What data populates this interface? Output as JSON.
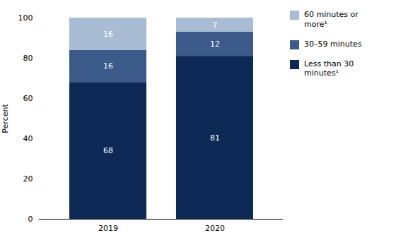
{
  "chart_data": {
    "type": "bar",
    "stacked": true,
    "data_labels": true,
    "grid": false,
    "legend": "right",
    "categories": [
      "2019",
      "2020"
    ],
    "series": [
      {
        "name": "Less than 30\nminutes¹",
        "color": "#0d2a57",
        "values": [
          68,
          81
        ]
      },
      {
        "name": "30–59 minutes",
        "color": "#3b5a8a",
        "values": [
          16,
          12
        ]
      },
      {
        "name": "60 minutes or\nmore¹",
        "color": "#a8bcd4",
        "values": [
          16,
          7
        ]
      }
    ],
    "ylabel": "Percent",
    "ylim": [
      0,
      100
    ],
    "yticks": [
      0,
      20,
      40,
      60,
      80,
      100
    ]
  }
}
